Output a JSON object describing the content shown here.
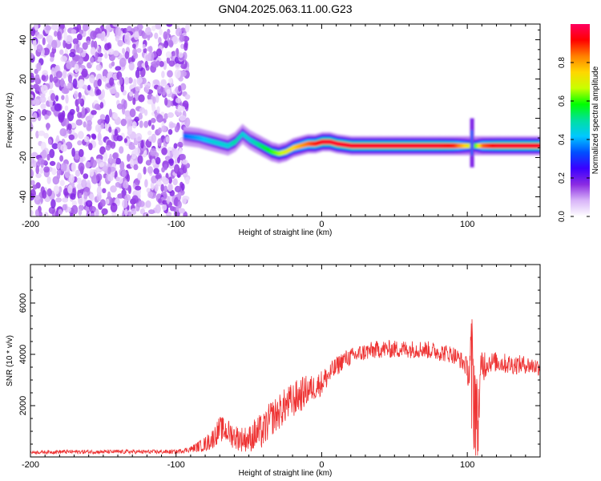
{
  "title": "GN04.2025.063.11.00.G23",
  "chart_data": [
    {
      "type": "heatmap",
      "title": "GN04.2025.063.11.00.G23",
      "xlabel": "Height of straight line (km)",
      "ylabel": "Frequency (Hz)",
      "xlim": [
        -200,
        150
      ],
      "ylim": [
        -50,
        48
      ],
      "xticks": [
        "-200",
        "-100",
        "0",
        "100"
      ],
      "xtick_values": [
        -200,
        -100,
        0,
        100
      ],
      "yticks": [
        "40",
        "20",
        "0",
        "-20",
        "-40"
      ],
      "ytick_values": [
        40,
        20,
        0,
        -20,
        -40
      ],
      "colorbar": {
        "label": "Normalized spectral amplitude",
        "range": [
          0,
          1
        ],
        "ticks": [
          "0.0",
          "0.2",
          "0.4",
          "0.6",
          "0.8"
        ],
        "tick_values": [
          0.0,
          0.2,
          0.4,
          0.6,
          0.8
        ],
        "colors": [
          "#ffffff",
          "#d8b4f8",
          "#8a2be2",
          "#3a00ff",
          "#0050ff",
          "#00c8ff",
          "#00e0a0",
          "#00ff00",
          "#c8ff00",
          "#ffd700",
          "#ff8000",
          "#ff0000",
          "#ff0060"
        ]
      },
      "noise_region": {
        "x": [
          -200,
          -92
        ],
        "amplitude": 0.15
      },
      "ridge": {
        "x": [
          -95,
          -85,
          -75,
          -70,
          -65,
          -60,
          -55,
          -50,
          -45,
          -40,
          -35,
          -30,
          -25,
          -20,
          -15,
          -10,
          -5,
          0,
          5,
          10,
          20,
          40,
          60,
          80,
          90,
          100,
          105,
          110,
          120,
          150
        ],
        "y": [
          -9,
          -10,
          -12,
          -13,
          -14,
          -12,
          -8,
          -11,
          -13,
          -15,
          -17,
          -18,
          -17,
          -15,
          -14,
          -13,
          -13,
          -12,
          -12,
          -13,
          -14,
          -14,
          -14,
          -14,
          -14,
          -14,
          -14,
          -14,
          -14,
          -14
        ],
        "amplitude": [
          0.35,
          0.4,
          0.45,
          0.45,
          0.45,
          0.5,
          0.45,
          0.45,
          0.5,
          0.55,
          0.6,
          0.65,
          0.7,
          0.75,
          0.8,
          0.85,
          0.9,
          0.95,
          0.95,
          0.95,
          0.95,
          0.95,
          0.95,
          0.95,
          0.9,
          0.7,
          0.6,
          0.85,
          0.95,
          0.95
        ]
      },
      "spike": {
        "x": 103,
        "y": [
          -25,
          0
        ]
      }
    },
    {
      "type": "line",
      "xlabel": "Height of straight line (km)",
      "ylabel": "SNR (10 * v/v)",
      "xlim": [
        -200,
        150
      ],
      "ylim": [
        0,
        7500
      ],
      "xticks": [
        "-200",
        "-100",
        "0",
        "100"
      ],
      "xtick_values": [
        -200,
        -100,
        0,
        100
      ],
      "yticks": [
        "6000",
        "4000",
        "2000"
      ],
      "ytick_values": [
        6000,
        4000,
        2000
      ],
      "color": "#ee3333",
      "x": [
        -200,
        -180,
        -160,
        -140,
        -120,
        -100,
        -90,
        -80,
        -75,
        -70,
        -65,
        -60,
        -55,
        -50,
        -45,
        -40,
        -35,
        -30,
        -25,
        -20,
        -15,
        -10,
        -5,
        0,
        5,
        10,
        15,
        20,
        25,
        30,
        40,
        50,
        60,
        70,
        80,
        90,
        95,
        100,
        103,
        105,
        107,
        110,
        115,
        120,
        130,
        140,
        150
      ],
      "y": [
        180,
        200,
        200,
        200,
        200,
        200,
        300,
        500,
        700,
        1100,
        1000,
        800,
        700,
        700,
        900,
        1000,
        1500,
        1700,
        2000,
        2200,
        2400,
        2600,
        2700,
        2900,
        3200,
        3500,
        3800,
        3900,
        4000,
        4100,
        4200,
        4200,
        4200,
        4200,
        4100,
        4000,
        3800,
        3500,
        3000,
        2500,
        1200,
        3600,
        3700,
        3700,
        3600,
        3600,
        3500
      ],
      "noise": [
        60,
        80,
        80,
        80,
        80,
        80,
        120,
        300,
        400,
        500,
        500,
        500,
        500,
        500,
        700,
        700,
        700,
        700,
        700,
        700,
        700,
        600,
        500,
        500,
        450,
        400,
        350,
        350,
        350,
        350,
        350,
        350,
        350,
        350,
        350,
        350,
        350,
        400,
        2800,
        2500,
        1500,
        800,
        400,
        400,
        400,
        350,
        350
      ]
    }
  ]
}
